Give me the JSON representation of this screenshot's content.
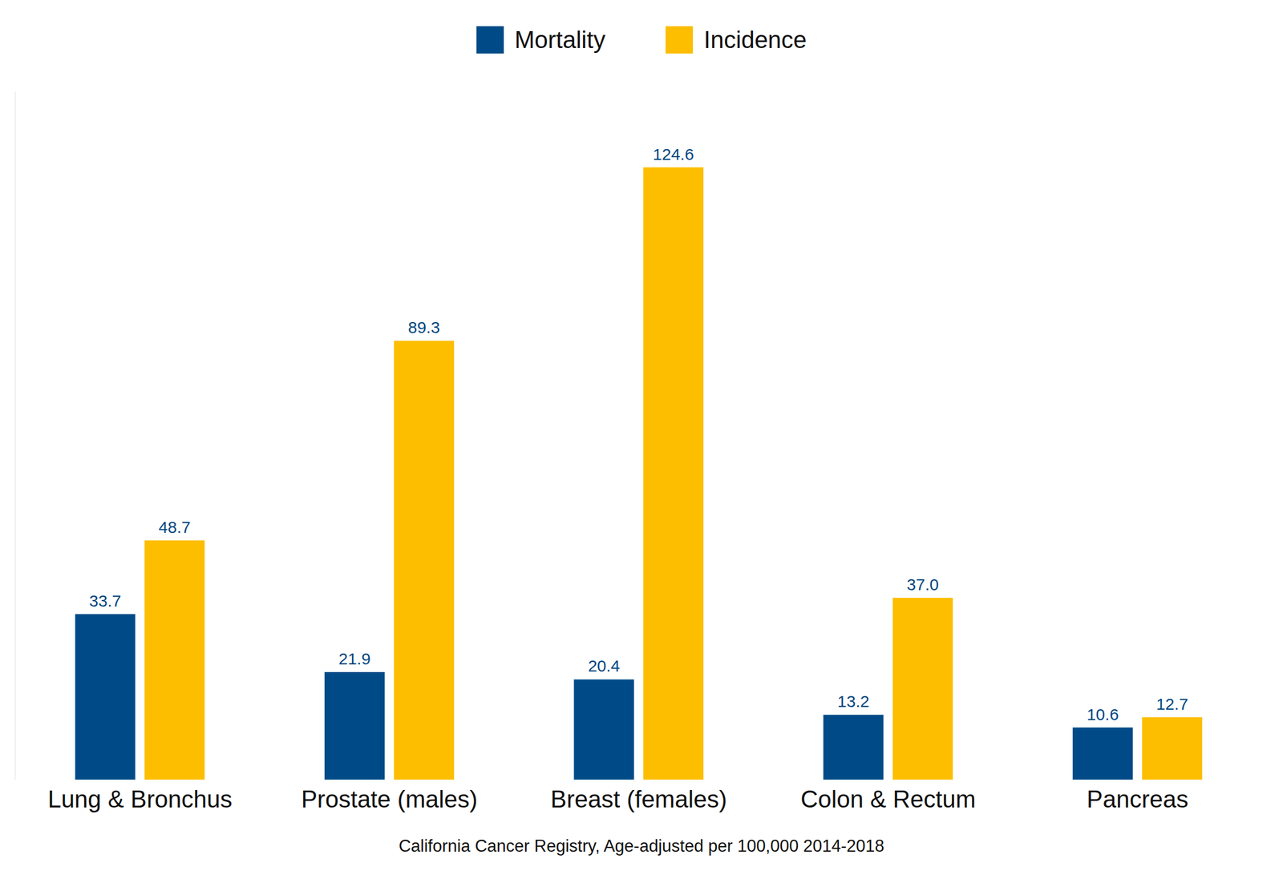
{
  "chart_data": {
    "type": "bar",
    "xlabel": "California Cancer Registry, Age-adjusted per 100,000 2014-2018",
    "categories": [
      "Lung & Bronchus",
      "Prostate (males)",
      "Breast (females)",
      "Colon & Rectum",
      "Pancreas"
    ],
    "series": [
      {
        "name": "Mortality",
        "color": "#004B87",
        "values": [
          33.7,
          21.9,
          20.4,
          13.2,
          10.6
        ],
        "value_labels": [
          "33.7",
          "21.9",
          "20.4",
          "13.2",
          "10.6"
        ]
      },
      {
        "name": "Incidence",
        "color": "#FDBE00",
        "values": [
          48.7,
          89.3,
          124.6,
          37.0,
          12.7
        ],
        "value_labels": [
          "48.7",
          "89.3",
          "124.6",
          "37.0",
          "12.7"
        ]
      }
    ],
    "ylim": [
      0,
      140
    ],
    "data_labels": true,
    "tick_labels": "x",
    "legend": "top",
    "grid": false
  }
}
